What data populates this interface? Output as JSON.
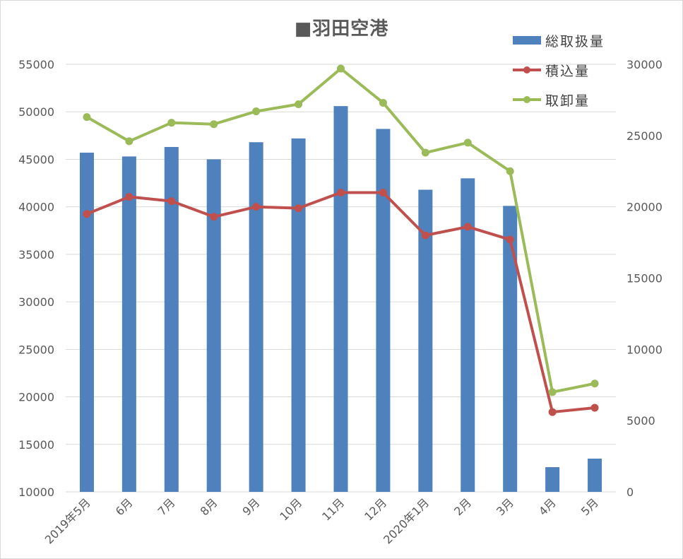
{
  "chart_data": {
    "type": "bar",
    "title": "■羽田空港",
    "categories": [
      "2019年5月",
      "6月",
      "7月",
      "8月",
      "9月",
      "10月",
      "11月",
      "12月",
      "2020年1月",
      "2月",
      "3月",
      "4月",
      "5月"
    ],
    "series": [
      {
        "name": "総取扱量",
        "type": "bar",
        "axis": "left",
        "color": "#4f81bd",
        "values": [
          45700,
          45300,
          46300,
          45000,
          46800,
          47200,
          50600,
          48200,
          41800,
          43000,
          40100,
          12600,
          13500
        ]
      },
      {
        "name": "積込量",
        "type": "line",
        "axis": "right",
        "color": "#c0504d",
        "values": [
          19500,
          20700,
          20400,
          19300,
          20000,
          19900,
          21000,
          21000,
          18000,
          18600,
          17700,
          5600,
          5900
        ]
      },
      {
        "name": "取卸量",
        "type": "line",
        "axis": "right",
        "color": "#9bbb59",
        "values": [
          26300,
          24600,
          25900,
          25800,
          26700,
          27200,
          29700,
          27300,
          23800,
          24500,
          22500,
          7000,
          7600
        ]
      }
    ],
    "y_left": {
      "min": 10000,
      "max": 55000,
      "step": 5000
    },
    "y_right": {
      "min": 0,
      "max": 30000,
      "step": 5000
    },
    "grid": true,
    "legend_position": "top-right"
  }
}
